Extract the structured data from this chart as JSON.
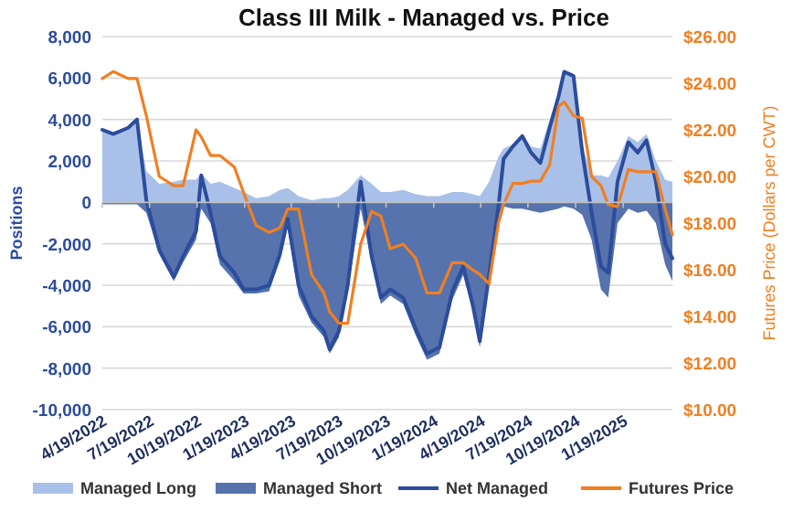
{
  "chart_data": {
    "type": "line",
    "title": "Class III Milk - Managed vs. Price",
    "ylabel": "Positions",
    "y2label": "Futures Price (Dollars per CWT)",
    "x": [
      "2022-04-19",
      "2022-05-10",
      "2022-06-08",
      "2022-06-25",
      "2022-07-13",
      "2022-08-07",
      "2022-09-04",
      "2022-09-22",
      "2022-10-17",
      "2022-10-27",
      "2022-11-14",
      "2022-12-02",
      "2022-12-30",
      "2023-01-17",
      "2023-02-10",
      "2023-03-07",
      "2023-03-28",
      "2023-04-12",
      "2023-05-03",
      "2023-05-28",
      "2023-06-21",
      "2023-07-02",
      "2023-07-20",
      "2023-08-06",
      "2023-08-31",
      "2023-09-21",
      "2023-10-09",
      "2023-10-27",
      "2023-11-21",
      "2023-12-15",
      "2024-01-06",
      "2024-01-30",
      "2024-02-24",
      "2024-03-16",
      "2024-04-03",
      "2024-04-17",
      "2024-05-05",
      "2024-05-23",
      "2024-06-02",
      "2024-06-20",
      "2024-07-08",
      "2024-07-25",
      "2024-08-12",
      "2024-08-30",
      "2024-09-16",
      "2024-09-27",
      "2024-10-15",
      "2024-11-01",
      "2024-11-19",
      "2024-12-07",
      "2024-12-21",
      "2025-01-08",
      "2025-01-29",
      "2025-02-16",
      "2025-03-05",
      "2025-03-23",
      "2025-04-10",
      "2025-04-24"
    ],
    "series": [
      {
        "name": "Managed Long",
        "type": "area",
        "color": "#a9c1e8",
        "values": [
          3600,
          3400,
          3600,
          4000,
          1500,
          900,
          1000,
          1100,
          1100,
          1400,
          900,
          1000,
          700,
          500,
          200,
          300,
          600,
          700,
          300,
          100,
          200,
          200,
          300,
          600,
          1300,
          900,
          500,
          500,
          600,
          400,
          300,
          300,
          500,
          500,
          400,
          300,
          1000,
          2200,
          2600,
          2800,
          3300,
          2700,
          2600,
          4000,
          5300,
          6400,
          6200,
          2800,
          1300,
          1300,
          1200,
          2000,
          3200,
          2900,
          3300,
          2000,
          1100,
          1000
        ]
      },
      {
        "name": "Managed Short",
        "type": "area",
        "color": "#5673ad",
        "values": [
          -100,
          -100,
          -100,
          -100,
          -500,
          -2500,
          -3800,
          -2900,
          -1800,
          -300,
          -1000,
          -3000,
          -3800,
          -4400,
          -4400,
          -4300,
          -2800,
          -1200,
          -4500,
          -5800,
          -6500,
          -7300,
          -6500,
          -4300,
          -300,
          -2900,
          -4900,
          -4500,
          -4900,
          -6400,
          -7600,
          -7300,
          -4700,
          -3500,
          -5200,
          -7000,
          -3800,
          -600,
          -200,
          -300,
          -300,
          -400,
          -500,
          -400,
          -300,
          -200,
          -300,
          -600,
          -1800,
          -4200,
          -4600,
          -1000,
          -300,
          -500,
          -400,
          -1000,
          -3000,
          -3800
        ]
      },
      {
        "name": "Net Managed",
        "color": "#2c4c9c",
        "values": [
          3500,
          3300,
          3600,
          4000,
          100,
          -2300,
          -3600,
          -2600,
          -1400,
          1300,
          -500,
          -2600,
          -3400,
          -4200,
          -4200,
          -4000,
          -2500,
          -800,
          -4000,
          -5500,
          -6200,
          -7100,
          -6200,
          -4000,
          1000,
          -2600,
          -4600,
          -4200,
          -4600,
          -6100,
          -7300,
          -7000,
          -4300,
          -3100,
          -4900,
          -6700,
          -3500,
          -200,
          2100,
          2700,
          3200,
          2400,
          1900,
          3600,
          5100,
          6300,
          6100,
          2400,
          -500,
          -3100,
          -3400,
          1000,
          2900,
          2400,
          3000,
          1000,
          -2000,
          -2700
        ]
      },
      {
        "name": "Futures Price",
        "axis": "y2",
        "color": "#f07f22",
        "values": [
          24.2,
          24.5,
          24.2,
          24.2,
          22.6,
          20.0,
          19.6,
          19.6,
          22.0,
          21.7,
          20.9,
          20.9,
          20.4,
          19.3,
          17.9,
          17.6,
          17.8,
          18.6,
          18.6,
          15.8,
          15.0,
          14.2,
          13.7,
          13.7,
          17.1,
          18.5,
          18.3,
          16.9,
          17.1,
          16.5,
          15.0,
          15.0,
          16.3,
          16.3,
          16.0,
          15.8,
          15.4,
          18.0,
          18.8,
          19.7,
          19.7,
          19.8,
          19.8,
          20.5,
          23.0,
          23.2,
          22.6,
          22.5,
          20.0,
          19.6,
          18.8,
          18.7,
          20.3,
          20.2,
          20.2,
          20.2,
          18.6,
          17.5
        ]
      }
    ],
    "xlim": [
      "2022-04-19",
      "2025-04-24"
    ],
    "xticks": [
      {
        "value": "2022-04-19",
        "label": "4/19/2022"
      },
      {
        "value": "2022-07-19",
        "label": "7/19/2022"
      },
      {
        "value": "2022-10-19",
        "label": "10/19/2022"
      },
      {
        "value": "2023-01-19",
        "label": "1/19/2023"
      },
      {
        "value": "2023-04-19",
        "label": "4/19/2023"
      },
      {
        "value": "2023-07-19",
        "label": "7/19/2023"
      },
      {
        "value": "2023-10-19",
        "label": "10/19/2023"
      },
      {
        "value": "2024-01-19",
        "label": "1/19/2024"
      },
      {
        "value": "2024-04-19",
        "label": "4/19/2024"
      },
      {
        "value": "2024-07-19",
        "label": "7/19/2024"
      },
      {
        "value": "2024-10-19",
        "label": "10/19/2024"
      },
      {
        "value": "2025-01-19",
        "label": "1/19/2025"
      }
    ],
    "ylim": [
      -10000,
      8000
    ],
    "yticks": [
      {
        "value": -10000,
        "label": "-10,000"
      },
      {
        "value": -8000,
        "label": "-8,000"
      },
      {
        "value": -6000,
        "label": "-6,000"
      },
      {
        "value": -4000,
        "label": "-4,000"
      },
      {
        "value": -2000,
        "label": "-2,000"
      },
      0,
      {
        "value": 2000,
        "label": "2,000"
      },
      {
        "value": 4000,
        "label": "4,000"
      },
      {
        "value": 6000,
        "label": "6,000"
      },
      {
        "value": 8000,
        "label": "8,000"
      }
    ],
    "y2lim": [
      10,
      26
    ],
    "y2ticks": [
      {
        "value": 10,
        "label": "$10.00"
      },
      {
        "value": 12,
        "label": "$12.00"
      },
      {
        "value": 14,
        "label": "$14.00"
      },
      {
        "value": 16,
        "label": "$16.00"
      },
      {
        "value": 18,
        "label": "$18.00"
      },
      {
        "value": 20,
        "label": "$20.00"
      },
      {
        "value": 22,
        "label": "$22.00"
      },
      {
        "value": 24,
        "label": "$24.00"
      },
      {
        "value": 26,
        "label": "$26.00"
      }
    ],
    "grid": "y",
    "legend": "bottom"
  }
}
